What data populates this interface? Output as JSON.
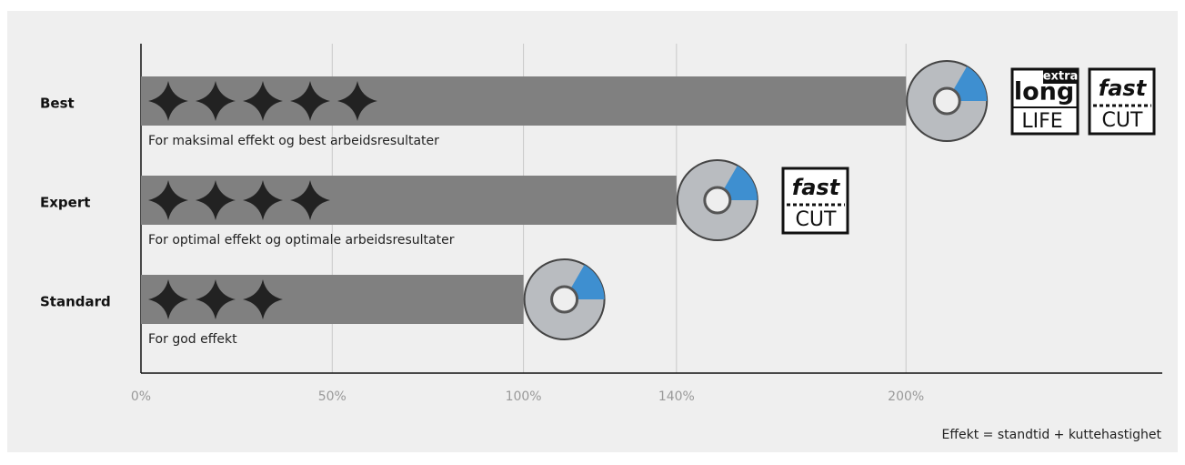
{
  "chart_data": {
    "type": "bar",
    "orientation": "horizontal",
    "categories": [
      "Best",
      "Expert",
      "Standard"
    ],
    "values": [
      200,
      140,
      100
    ],
    "stars": [
      5,
      4,
      3
    ],
    "descriptions": [
      "For maksimal effekt og best arbeidsresultater",
      "For optimal effekt og optimale arbeidsresultater",
      "For god effekt"
    ],
    "color": "#808080",
    "xlim": [
      0,
      267
    ],
    "xticks": [
      {
        "value": 0,
        "label": "0%"
      },
      {
        "value": 50,
        "label": "50%"
      },
      {
        "value": 100,
        "label": "100%"
      },
      {
        "value": 140,
        "label": "140%"
      },
      {
        "value": 200,
        "label": "200%"
      }
    ],
    "grid": true,
    "footnote": "Effekt = standtid + kuttehastighet",
    "badges": {
      "long_life": {
        "top": "extra",
        "main": "long",
        "bottom": "LIFE"
      },
      "fast_cut": {
        "top": "fast",
        "bottom": "CUT"
      }
    }
  }
}
